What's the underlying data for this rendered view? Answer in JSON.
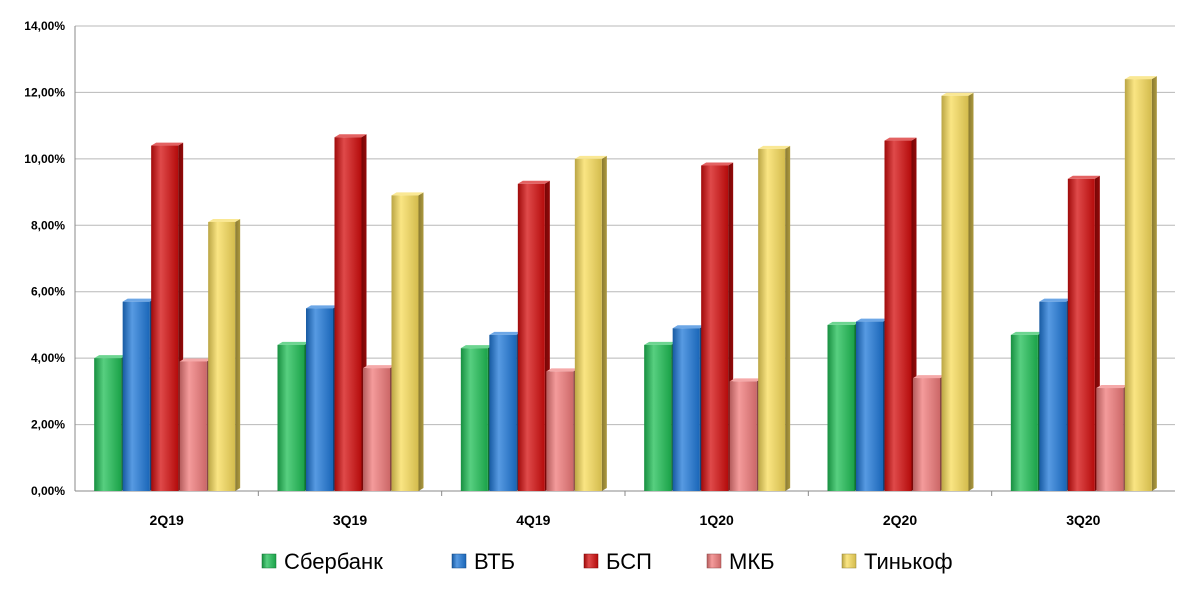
{
  "chart_data": {
    "type": "bar",
    "title": "",
    "xlabel": "",
    "ylabel": "",
    "ylim": [
      0,
      14
    ],
    "yticks": [
      0,
      2,
      4,
      6,
      8,
      10,
      12,
      14
    ],
    "ytick_labels": [
      "0,00%",
      "2,00%",
      "4,00%",
      "6,00%",
      "8,00%",
      "10,00%",
      "12,00%",
      "14,00%"
    ],
    "grid": true,
    "legend_position": "bottom",
    "categories": [
      "2Q19",
      "3Q19",
      "4Q19",
      "1Q20",
      "2Q20",
      "3Q20"
    ],
    "series": [
      {
        "name": "Сбербанк",
        "color": "#1fbf55",
        "values": [
          4.0,
          4.4,
          4.3,
          4.4,
          5.0,
          4.7
        ]
      },
      {
        "name": "ВТБ",
        "color": "#1f78d8",
        "values": [
          5.7,
          5.5,
          4.7,
          4.9,
          5.1,
          5.7
        ]
      },
      {
        "name": "БСП",
        "color": "#d40d0d",
        "values": [
          10.4,
          10.65,
          9.25,
          9.8,
          10.55,
          9.4
        ]
      },
      {
        "name": "МКБ",
        "color": "#f07a7a",
        "values": [
          3.9,
          3.7,
          3.6,
          3.3,
          3.4,
          3.1
        ]
      },
      {
        "name": "Тинькоф",
        "color": "#f8dc5a",
        "values": [
          8.1,
          8.9,
          10.0,
          10.3,
          11.9,
          12.4
        ]
      }
    ]
  }
}
